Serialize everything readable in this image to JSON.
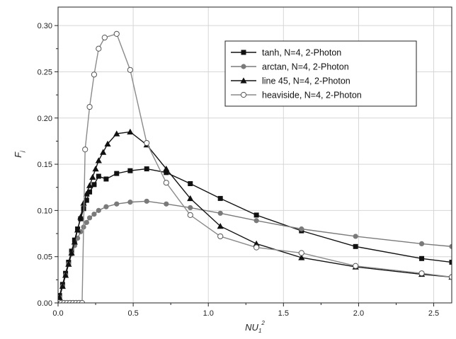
{
  "chart_data": {
    "type": "line",
    "x_axis": {
      "range": [
        0,
        2.62
      ],
      "ticks": [
        0,
        0.5,
        1.0,
        1.5,
        2.0,
        2.5
      ],
      "tick_labels": [
        "0.0",
        "0.5",
        "1.0",
        "1.5",
        "2.0",
        "2.5"
      ],
      "label_main": "NU",
      "label_sub": "1",
      "label_sup": "2"
    },
    "y_axis": {
      "range": [
        0,
        0.32
      ],
      "ticks": [
        0,
        0.05,
        0.1,
        0.15,
        0.2,
        0.25,
        0.3
      ],
      "tick_labels": [
        "0.00",
        "0.05",
        "0.10",
        "0.15",
        "0.20",
        "0.25",
        "0.30"
      ],
      "label_main": "F",
      "label_sub": "j"
    },
    "grid": true,
    "legend_position": "top-right",
    "series": [
      {
        "name": "tanh, N=4, 2-Photon",
        "marker": "filled-square",
        "line_color": "#111111",
        "marker_color": "#111111",
        "points": [
          [
            0.01,
            0.008
          ],
          [
            0.03,
            0.02
          ],
          [
            0.05,
            0.032
          ],
          [
            0.07,
            0.044
          ],
          [
            0.09,
            0.056
          ],
          [
            0.11,
            0.068
          ],
          [
            0.13,
            0.08
          ],
          [
            0.15,
            0.091
          ],
          [
            0.17,
            0.102
          ],
          [
            0.19,
            0.111
          ],
          [
            0.21,
            0.12
          ],
          [
            0.24,
            0.128
          ],
          [
            0.27,
            0.137
          ],
          [
            0.32,
            0.134
          ],
          [
            0.39,
            0.14
          ],
          [
            0.48,
            0.143
          ],
          [
            0.59,
            0.145
          ],
          [
            0.72,
            0.141
          ],
          [
            0.88,
            0.129
          ],
          [
            1.08,
            0.113
          ],
          [
            1.32,
            0.095
          ],
          [
            1.62,
            0.078
          ],
          [
            1.98,
            0.061
          ],
          [
            2.42,
            0.048
          ],
          [
            2.62,
            0.044
          ]
        ]
      },
      {
        "name": "arctan, N=4, 2-Photon",
        "marker": "filled-circle",
        "line_color": "#7a7a7a",
        "marker_color": "#7a7a7a",
        "points": [
          [
            0.01,
            0.006
          ],
          [
            0.03,
            0.018
          ],
          [
            0.05,
            0.03
          ],
          [
            0.07,
            0.042
          ],
          [
            0.09,
            0.053
          ],
          [
            0.11,
            0.062
          ],
          [
            0.13,
            0.07
          ],
          [
            0.15,
            0.077
          ],
          [
            0.17,
            0.082
          ],
          [
            0.19,
            0.087
          ],
          [
            0.21,
            0.092
          ],
          [
            0.24,
            0.096
          ],
          [
            0.27,
            0.1
          ],
          [
            0.32,
            0.104
          ],
          [
            0.39,
            0.107
          ],
          [
            0.48,
            0.109
          ],
          [
            0.59,
            0.11
          ],
          [
            0.72,
            0.107
          ],
          [
            0.88,
            0.103
          ],
          [
            1.08,
            0.097
          ],
          [
            1.32,
            0.089
          ],
          [
            1.62,
            0.08
          ],
          [
            1.98,
            0.072
          ],
          [
            2.42,
            0.064
          ],
          [
            2.62,
            0.061
          ]
        ]
      },
      {
        "name": "line 45, N=4, 2-Photon",
        "marker": "filled-triangle",
        "line_color": "#111111",
        "marker_color": "#111111",
        "points": [
          [
            0.01,
            0.006
          ],
          [
            0.03,
            0.018
          ],
          [
            0.05,
            0.03
          ],
          [
            0.07,
            0.042
          ],
          [
            0.09,
            0.054
          ],
          [
            0.11,
            0.066
          ],
          [
            0.13,
            0.079
          ],
          [
            0.15,
            0.093
          ],
          [
            0.17,
            0.108
          ],
          [
            0.19,
            0.118
          ],
          [
            0.21,
            0.127
          ],
          [
            0.23,
            0.136
          ],
          [
            0.25,
            0.145
          ],
          [
            0.27,
            0.154
          ],
          [
            0.3,
            0.163
          ],
          [
            0.33,
            0.172
          ],
          [
            0.39,
            0.183
          ],
          [
            0.48,
            0.185
          ],
          [
            0.59,
            0.171
          ],
          [
            0.72,
            0.145
          ],
          [
            0.88,
            0.113
          ],
          [
            1.08,
            0.083
          ],
          [
            1.32,
            0.064
          ],
          [
            1.62,
            0.049
          ],
          [
            1.98,
            0.039
          ],
          [
            2.42,
            0.031
          ],
          [
            2.62,
            0.028
          ]
        ]
      },
      {
        "name": "heaviside, N=4, 2-Photon",
        "marker": "open-circle",
        "line_color": "#8a8a8a",
        "marker_color": "#555555",
        "points": [
          [
            0.02,
            0.0
          ],
          [
            0.04,
            0.0
          ],
          [
            0.06,
            0.0
          ],
          [
            0.08,
            0.0
          ],
          [
            0.1,
            0.0
          ],
          [
            0.12,
            0.0
          ],
          [
            0.14,
            0.0
          ],
          [
            0.16,
            0.0
          ],
          [
            0.18,
            0.166
          ],
          [
            0.21,
            0.212
          ],
          [
            0.24,
            0.247
          ],
          [
            0.27,
            0.275
          ],
          [
            0.31,
            0.287
          ],
          [
            0.39,
            0.291
          ],
          [
            0.48,
            0.252
          ],
          [
            0.59,
            0.173
          ],
          [
            0.72,
            0.13
          ],
          [
            0.88,
            0.095
          ],
          [
            1.08,
            0.072
          ],
          [
            1.32,
            0.06
          ],
          [
            1.62,
            0.054
          ],
          [
            1.98,
            0.04
          ],
          [
            2.42,
            0.032
          ],
          [
            2.62,
            0.028
          ]
        ]
      }
    ]
  }
}
